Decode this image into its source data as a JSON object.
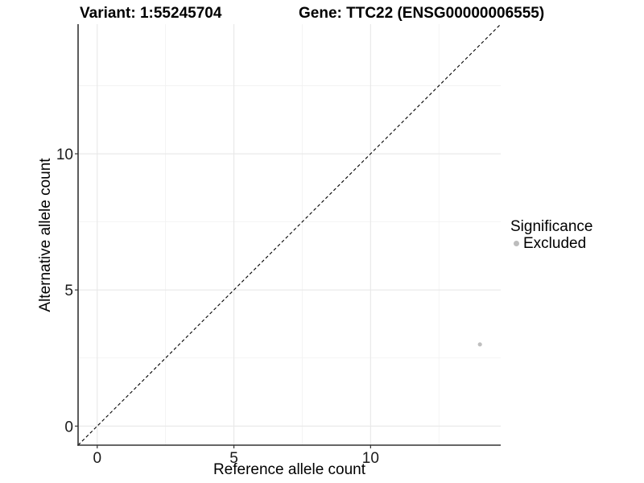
{
  "header": {
    "variant_title": "Variant: 1:55245704",
    "gene_title": "Gene: TTC22 (ENSG00000006555)"
  },
  "chart_data": {
    "type": "scatter",
    "title_left": "Variant: 1:55245704",
    "title_right": "Gene: TTC22 (ENSG00000006555)",
    "xlabel": "Reference allele count",
    "ylabel": "Alternative allele count",
    "x_ticks": [
      0,
      5,
      10
    ],
    "y_ticks": [
      0,
      5,
      10
    ],
    "x_minor_gridlines": [
      2.5,
      7.5,
      12.5
    ],
    "y_minor_gridlines": [
      2.5,
      7.5,
      12.5
    ],
    "xlim": [
      -0.7,
      14.76
    ],
    "ylim": [
      -0.7,
      14.76
    ],
    "grid": true,
    "points": [
      {
        "x": 14,
        "y": 3,
        "series": "Excluded"
      }
    ],
    "abline": {
      "slope": 1,
      "intercept": 0,
      "linetype": "dashed",
      "color": "#000000"
    },
    "legend": {
      "title": "Significance",
      "position": "right",
      "items": [
        {
          "label": "Excluded",
          "color": "#bdbdbd"
        }
      ]
    },
    "colors": {
      "point": "#bfbfbf",
      "grid_major": "#e8e8e8",
      "grid_minor": "#f1f1f1",
      "axis_line": "#333333",
      "tick_text": "#1a1a1a"
    }
  }
}
